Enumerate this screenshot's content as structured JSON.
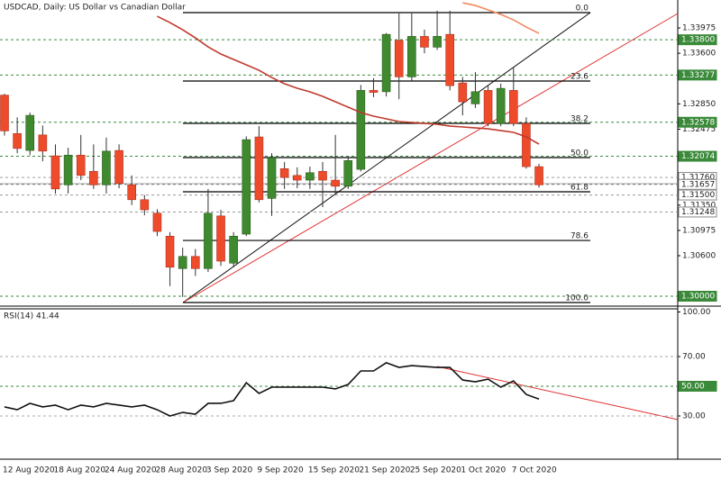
{
  "chart_data": [
    {
      "type": "candlestick",
      "title": "USDCAD, Daily:  US Dollar vs Canadian Dollar",
      "categories": [
        "12 Aug 2020",
        null,
        null,
        null,
        "18 Aug 2020",
        null,
        null,
        null,
        "24 Aug 2020",
        null,
        null,
        null,
        "28 Aug 2020",
        null,
        null,
        null,
        "3 Sep 2020",
        null,
        null,
        null,
        "9 Sep 2020",
        null,
        null,
        null,
        "15 Sep 2020",
        null,
        null,
        null,
        "21 Sep 2020",
        null,
        null,
        null,
        "25 Sep 2020",
        null,
        null,
        null,
        "1 Oct 2020",
        null,
        null,
        null,
        "7 Oct 2020",
        null,
        null
      ],
      "open": [
        1.3298,
        1.3241,
        1.3216,
        1.3239,
        1.3208,
        1.3165,
        1.3209,
        1.3185,
        1.3165,
        1.3216,
        1.3165,
        1.3143,
        1.3123,
        1.3089,
        1.3041,
        1.3059,
        1.3041,
        1.3119,
        1.3049,
        1.3092,
        1.3236,
        1.3145,
        1.3189,
        1.3179,
        1.3172,
        1.3185,
        1.3172,
        1.3163,
        1.3188,
        1.3305,
        1.3303,
        1.3379,
        1.3325,
        1.3385,
        1.3369,
        1.3388,
        1.3316,
        1.3285,
        1.3305,
        1.3256,
        1.3305,
        1.3256,
        1.3192
      ],
      "high": [
        1.33,
        1.3265,
        1.3272,
        1.3253,
        1.3225,
        1.322,
        1.3239,
        1.3225,
        1.3235,
        1.3225,
        1.3179,
        1.315,
        1.3129,
        1.3095,
        1.3072,
        1.307,
        1.3159,
        1.3128,
        1.3095,
        1.3237,
        1.3252,
        1.3212,
        1.3199,
        1.3191,
        1.3192,
        1.3199,
        1.3239,
        1.3207,
        1.3313,
        1.3323,
        1.339,
        1.3419,
        1.3419,
        1.3395,
        1.3423,
        1.3423,
        1.3325,
        1.3332,
        1.3312,
        1.3315,
        1.3339,
        1.3265,
        1.3196
      ],
      "low": [
        1.3238,
        1.3212,
        1.3209,
        1.32,
        1.3152,
        1.3152,
        1.3172,
        1.3159,
        1.3152,
        1.316,
        1.3135,
        1.312,
        1.3089,
        1.3015,
        1.2999,
        1.303,
        1.3036,
        1.3045,
        1.3043,
        1.3089,
        1.3139,
        1.3119,
        1.3159,
        1.316,
        1.3159,
        1.3132,
        1.3152,
        1.3159,
        1.3185,
        1.3295,
        1.3296,
        1.3292,
        1.3319,
        1.336,
        1.3365,
        1.3305,
        1.3268,
        1.3279,
        1.3252,
        1.3252,
        1.3252,
        1.3189,
        1.3161
      ],
      "close": [
        1.3245,
        1.3219,
        1.3268,
        1.3215,
        1.3159,
        1.3209,
        1.3179,
        1.3165,
        1.3215,
        1.3167,
        1.3143,
        1.3128,
        1.3096,
        1.3043,
        1.3059,
        1.3041,
        1.3123,
        1.3052,
        1.3089,
        1.3232,
        1.3143,
        1.3205,
        1.3176,
        1.3172,
        1.3183,
        1.3172,
        1.3163,
        1.3201,
        1.3305,
        1.3302,
        1.3388,
        1.3325,
        1.3385,
        1.3369,
        1.3385,
        1.3312,
        1.3288,
        1.3303,
        1.3256,
        1.3308,
        1.3256,
        1.3192,
        1.3165
      ],
      "up_color": "#3f8a2e",
      "down_color": "#ee4b2b",
      "moving_averages": [
        {
          "color": "#c0392b",
          "values": [
            null,
            null,
            null,
            null,
            null,
            null,
            null,
            null,
            null,
            null,
            null,
            null,
            1.34148,
            1.34055,
            1.33948,
            1.33828,
            1.33695,
            1.33588,
            1.33508,
            1.33428,
            1.33348,
            1.33241,
            1.33148,
            1.33081,
            1.33028,
            1.32961,
            1.32881,
            1.32801,
            1.32721,
            1.32668,
            1.32628,
            1.32588,
            1.32574,
            1.32561,
            1.32548,
            1.32521,
            1.32508,
            1.32494,
            1.32481,
            1.32454,
            1.32428,
            1.32361,
            1.32254
          ]
        },
        {
          "color": "#f08a5d",
          "values": [
            null,
            null,
            null,
            null,
            null,
            null,
            null,
            null,
            null,
            null,
            null,
            null,
            null,
            null,
            null,
            null,
            null,
            null,
            null,
            null,
            null,
            null,
            null,
            null,
            null,
            null,
            null,
            null,
            null,
            null,
            null,
            null,
            null,
            null,
            null,
            null,
            1.34348,
            1.34308,
            1.34242,
            1.34175,
            1.34095,
            1.33988,
            1.33895
          ]
        }
      ],
      "ylim": [
        1.2988,
        1.34389
      ],
      "yticks": [
        {
          "value": 1.33975,
          "label": "1.33975"
        },
        {
          "value": 1.336,
          "label": "1.33600"
        },
        {
          "value": 1.3285,
          "label": "1.32850"
        },
        {
          "value": 1.32475,
          "label": "1.32475"
        },
        {
          "value": 1.3135,
          "label": "1.31350"
        },
        {
          "value": 1.30975,
          "label": "1.30975"
        },
        {
          "value": 1.306,
          "label": "1.30600"
        }
      ],
      "levels": [
        {
          "value": 1.338,
          "label": "1.33800",
          "color": "#3a8a3a"
        },
        {
          "value": 1.33277,
          "label": "1.33277",
          "color": "#3a8a3a"
        },
        {
          "value": 1.32578,
          "label": "1.32578",
          "color": "#3a8a3a"
        },
        {
          "value": 1.32074,
          "label": "1.32074",
          "color": "#3a8a3a"
        },
        {
          "value": 1.3176,
          "label": "1.31760",
          "color": "#a0a0a0"
        },
        {
          "value": 1.31657,
          "label": "1.31657",
          "color": "#777777"
        },
        {
          "value": 1.315,
          "label": "1.31500",
          "color": "#999999"
        },
        {
          "value": 1.31248,
          "label": "1.31248",
          "color": "#999999"
        },
        {
          "value": 1.3,
          "label": "1.30000",
          "color": "#3a8a3a"
        }
      ],
      "fibonacci": {
        "high": 1.34202,
        "low": 1.29907,
        "levels": [
          {
            "value": 0,
            "label": "0.0"
          },
          {
            "value": 23.6,
            "label": "23.6"
          },
          {
            "value": 38.2,
            "label": "38.2"
          },
          {
            "value": 50,
            "label": "50.0"
          },
          {
            "value": 61.8,
            "label": "61.8"
          },
          {
            "value": 78.6,
            "label": "78.6"
          },
          {
            "value": 100,
            "label": "100.0"
          }
        ]
      }
    },
    {
      "type": "line",
      "title": "RSI(14) 41.44",
      "color": "#111111",
      "values": [
        36.1,
        34.2,
        38.5,
        36.1,
        37.3,
        34.2,
        37.3,
        36.1,
        38.5,
        37.3,
        36.1,
        37.3,
        34.2,
        30.0,
        32.4,
        31.2,
        38.5,
        38.5,
        40.3,
        52.4,
        45.2,
        49.4,
        49.4,
        49.4,
        49.4,
        49.4,
        48.2,
        51.2,
        60.3,
        60.3,
        65.8,
        62.7,
        63.9,
        63.3,
        62.7,
        62.7,
        54.2,
        53.0,
        54.8,
        49.4,
        53.6,
        44.5,
        41.4
      ],
      "ylim": [
        0,
        100
      ],
      "yticks": [
        {
          "value": 100,
          "label": "100.00"
        },
        {
          "value": 70,
          "label": "70.00"
        },
        {
          "value": 30,
          "label": "30.00"
        }
      ],
      "levels": [
        {
          "value": 70,
          "color": "#aaaaaa"
        },
        {
          "value": 50,
          "label": "50.00",
          "color": "#3a8a3a"
        },
        {
          "value": 30,
          "color": "#aaaaaa"
        }
      ]
    }
  ]
}
